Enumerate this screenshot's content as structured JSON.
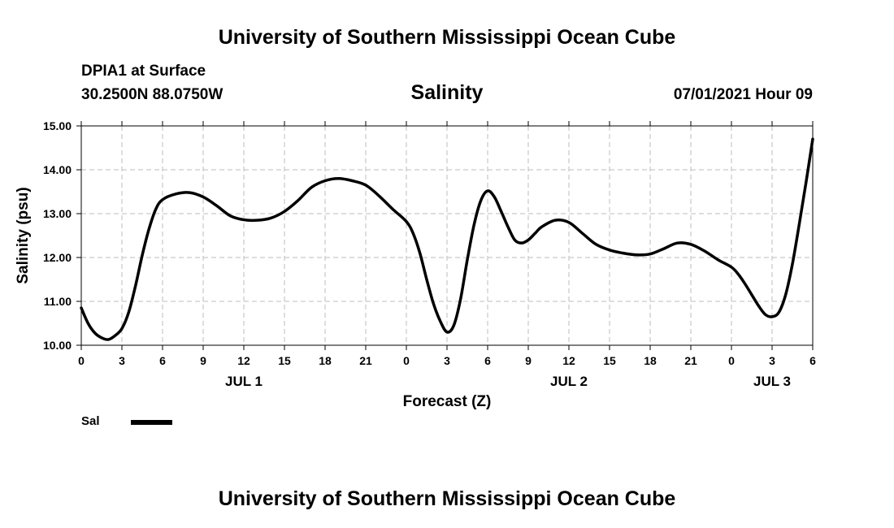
{
  "header": {
    "title": "University of Southern Mississippi Ocean Cube",
    "station": "DPIA1 at Surface",
    "coordinates": "30.2500N  88.0750W",
    "chart_title": "Salinity",
    "timestamp": "07/01/2021 Hour 09"
  },
  "footer": {
    "title": "University of Southern Mississippi Ocean Cube"
  },
  "chart_data": {
    "type": "line",
    "title": "Salinity",
    "xlabel": "Forecast (Z)",
    "ylabel": "Salinity (psu)",
    "xlim": [
      0,
      54
    ],
    "ylim": [
      10,
      15
    ],
    "y_ticks": [
      10,
      11,
      12,
      13,
      14,
      15
    ],
    "y_tick_labels": [
      "10.00",
      "11.00",
      "12.00",
      "13.00",
      "14.00",
      "15.00"
    ],
    "x_ticks": [
      0,
      3,
      6,
      9,
      12,
      15,
      18,
      21,
      24,
      27,
      30,
      33,
      36,
      39,
      42,
      45,
      48,
      51,
      54
    ],
    "x_tick_labels": [
      "0",
      "3",
      "6",
      "9",
      "12",
      "15",
      "18",
      "21",
      "0",
      "3",
      "6",
      "9",
      "12",
      "15",
      "18",
      "21",
      "0",
      "3",
      "6"
    ],
    "day_labels": [
      {
        "x": 12,
        "label": "JUL 1"
      },
      {
        "x": 36,
        "label": "JUL 2"
      },
      {
        "x": 51,
        "label": "JUL 3"
      }
    ],
    "grid": true,
    "legend": "bottom-left",
    "series": [
      {
        "name": "Sal",
        "color": "#000000",
        "x": [
          0,
          0.5,
          1,
          1.5,
          2,
          2.5,
          3,
          3.5,
          4,
          4.5,
          5,
          5.5,
          6,
          7,
          8,
          9,
          10,
          11,
          12,
          13,
          14,
          15,
          16,
          17,
          18,
          19,
          20,
          21,
          22,
          23,
          24,
          24.5,
          25,
          25.5,
          26,
          26.5,
          27,
          27.5,
          28,
          28.5,
          29,
          29.5,
          30,
          30.5,
          31,
          31.5,
          32,
          32.5,
          33,
          33.5,
          34,
          35,
          36,
          37,
          38,
          39,
          40,
          41,
          42,
          43,
          44,
          45,
          46,
          47,
          48,
          48.5,
          49,
          49.5,
          50,
          50.5,
          51,
          51.5,
          52,
          52.5,
          53,
          53.5,
          54
        ],
        "y": [
          10.85,
          10.5,
          10.28,
          10.17,
          10.13,
          10.22,
          10.38,
          10.75,
          11.35,
          12.05,
          12.65,
          13.1,
          13.32,
          13.45,
          13.48,
          13.38,
          13.18,
          12.95,
          12.86,
          12.85,
          12.9,
          13.05,
          13.3,
          13.6,
          13.75,
          13.8,
          13.75,
          13.65,
          13.4,
          13.1,
          12.82,
          12.55,
          12.1,
          11.5,
          10.95,
          10.55,
          10.3,
          10.45,
          11.05,
          11.95,
          12.75,
          13.3,
          13.52,
          13.38,
          13.05,
          12.7,
          12.4,
          12.33,
          12.4,
          12.55,
          12.7,
          12.85,
          12.8,
          12.55,
          12.3,
          12.17,
          12.1,
          12.06,
          12.08,
          12.2,
          12.33,
          12.3,
          12.15,
          11.95,
          11.78,
          11.62,
          11.4,
          11.15,
          10.9,
          10.7,
          10.65,
          10.75,
          11.15,
          11.85,
          12.75,
          13.7,
          14.7
        ]
      }
    ]
  },
  "legend": {
    "label": "Sal"
  }
}
